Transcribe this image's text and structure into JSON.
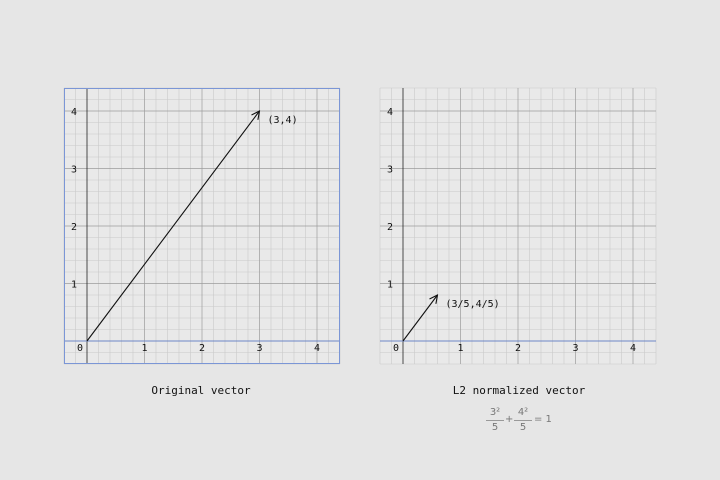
{
  "colors": {
    "background": "#e6e6e6",
    "plot_background": "#e9e9e9",
    "minor_grid": "#c9c9c9",
    "major_grid": "#9b9b9b",
    "axis_line": "#6d86c7",
    "frame": "#7b96d6",
    "vector": "#111111"
  },
  "chart_data": [
    {
      "type": "line",
      "caption": "Original vector",
      "xlim": [
        -0.4,
        4.4
      ],
      "ylim": [
        -0.4,
        4.4
      ],
      "xticks": [
        "0",
        "1",
        "2",
        "3",
        "4"
      ],
      "yticks": [
        "1",
        "2",
        "3",
        "4"
      ],
      "minor_grid_step": 0.2,
      "major_grid_step": 1,
      "grid": true,
      "framed": true,
      "vector": {
        "x": 3,
        "y": 4,
        "label": "(3,4)"
      }
    },
    {
      "type": "line",
      "caption": "L2 normalized vector",
      "xlim": [
        -0.4,
        4.4
      ],
      "ylim": [
        -0.4,
        4.4
      ],
      "xticks": [
        "0",
        "1",
        "2",
        "3",
        "4"
      ],
      "yticks": [
        "1",
        "2",
        "3",
        "4"
      ],
      "minor_grid_step": 0.2,
      "major_grid_step": 1,
      "grid": true,
      "framed": false,
      "vector": {
        "x": 0.6,
        "y": 0.8,
        "label": "(3/5,4/5)"
      }
    }
  ],
  "formula": {
    "term1_num": "3²",
    "term1_den": "5",
    "plus": "+",
    "term2_num": "4²",
    "term2_den": "5",
    "equals": "= 1"
  }
}
